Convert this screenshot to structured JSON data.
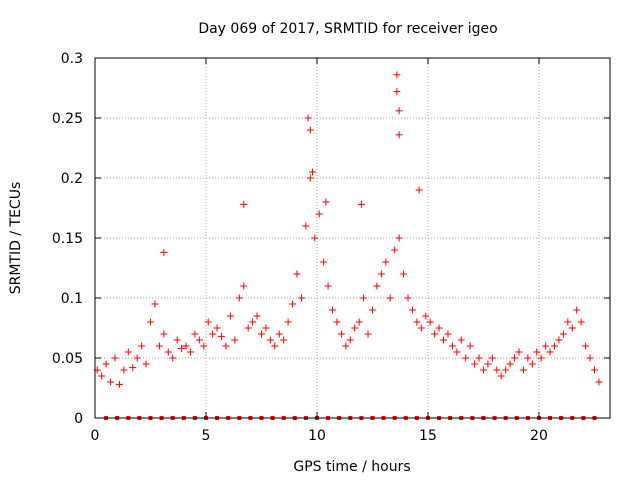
{
  "chart_data": {
    "type": "scatter",
    "title": "Day 069 of 2017, SRMTID for receiver igeo",
    "xlabel": "GPS time / hours",
    "ylabel": "SRMTID / TECUs",
    "xlim": [
      0,
      23.2
    ],
    "ylim": [
      0,
      0.3
    ],
    "x_ticks": [
      0,
      5,
      10,
      15,
      20
    ],
    "y_ticks": [
      0,
      0.05,
      0.1,
      0.15,
      0.2,
      0.25,
      0.3
    ],
    "x_tick_labels": [
      "0",
      "5",
      "10",
      "15",
      "20"
    ],
    "y_tick_labels": [
      "0",
      "0.05",
      "0.1",
      "0.15",
      "0.2",
      "0.25",
      "0.3"
    ],
    "grid": true,
    "marker": "plus",
    "series": [
      {
        "name": "SRMTID",
        "color": "#ff0000",
        "x": [
          0.1,
          0.3,
          0.5,
          0.7,
          0.9,
          1.1,
          1.3,
          1.5,
          1.7,
          1.9,
          2.1,
          2.3,
          2.5,
          2.7,
          2.9,
          3.1,
          3.3,
          3.5,
          3.7,
          3.9,
          4.1,
          4.3,
          4.5,
          4.7,
          4.9,
          5.1,
          5.3,
          5.5,
          5.7,
          5.9,
          6.1,
          6.3,
          6.5,
          6.7,
          6.9,
          7.1,
          7.3,
          7.5,
          7.7,
          7.9,
          8.1,
          8.3,
          8.5,
          8.7,
          8.9,
          9.1,
          9.3,
          9.5,
          9.7,
          9.9,
          10.1,
          10.3,
          10.5,
          10.7,
          10.9,
          11.1,
          11.3,
          11.5,
          11.7,
          11.9,
          12.1,
          12.3,
          12.5,
          12.7,
          12.9,
          13.1,
          13.3,
          13.5,
          13.7,
          13.9,
          14.1,
          14.3,
          14.5,
          14.7,
          14.9,
          15.1,
          15.3,
          15.5,
          15.7,
          15.9,
          16.1,
          16.3,
          16.5,
          16.7,
          16.9,
          17.1,
          17.3,
          17.5,
          17.7,
          17.9,
          18.1,
          18.3,
          18.5,
          18.7,
          18.9,
          19.1,
          19.3,
          19.5,
          19.7,
          19.9,
          20.1,
          20.3,
          20.5,
          20.7,
          20.9,
          21.1,
          21.3,
          21.5,
          21.7,
          21.9,
          22.1,
          22.3,
          22.5,
          22.7,
          9.6,
          9.7,
          13.6,
          13.6,
          13.7,
          13.7,
          9.8,
          10.4,
          12.0,
          14.6,
          6.7,
          3.1
        ],
        "y": [
          0.04,
          0.035,
          0.045,
          0.03,
          0.05,
          0.028,
          0.04,
          0.055,
          0.042,
          0.05,
          0.06,
          0.045,
          0.08,
          0.095,
          0.06,
          0.07,
          0.055,
          0.05,
          0.065,
          0.058,
          0.06,
          0.055,
          0.07,
          0.065,
          0.06,
          0.08,
          0.07,
          0.075,
          0.068,
          0.06,
          0.085,
          0.065,
          0.1,
          0.11,
          0.075,
          0.08,
          0.085,
          0.07,
          0.075,
          0.065,
          0.06,
          0.07,
          0.065,
          0.08,
          0.095,
          0.12,
          0.1,
          0.16,
          0.2,
          0.15,
          0.17,
          0.13,
          0.11,
          0.09,
          0.08,
          0.07,
          0.06,
          0.065,
          0.075,
          0.08,
          0.1,
          0.07,
          0.09,
          0.11,
          0.12,
          0.13,
          0.1,
          0.14,
          0.15,
          0.12,
          0.1,
          0.09,
          0.08,
          0.075,
          0.085,
          0.08,
          0.07,
          0.075,
          0.065,
          0.07,
          0.06,
          0.055,
          0.065,
          0.05,
          0.06,
          0.045,
          0.05,
          0.04,
          0.045,
          0.05,
          0.04,
          0.035,
          0.04,
          0.045,
          0.05,
          0.055,
          0.04,
          0.05,
          0.045,
          0.055,
          0.05,
          0.06,
          0.055,
          0.06,
          0.065,
          0.07,
          0.08,
          0.075,
          0.09,
          0.08,
          0.06,
          0.05,
          0.04,
          0.03,
          0.25,
          0.24,
          0.286,
          0.272,
          0.256,
          0.236,
          0.205,
          0.18,
          0.178,
          0.19,
          0.178,
          0.138
        ]
      }
    ],
    "data_gap_markers_y": 0,
    "data_gap_markers_x": [
      0.5,
      1.0,
      1.5,
      2.0,
      2.5,
      3.0,
      3.5,
      4.0,
      4.5,
      5.0,
      5.5,
      6.0,
      6.5,
      7.0,
      7.5,
      8.0,
      8.5,
      9.0,
      9.5,
      10.0,
      10.5,
      11.0,
      11.5,
      12.0,
      12.5,
      13.0,
      13.5,
      14.0,
      14.5,
      15.0,
      15.5,
      16.0,
      16.5,
      17.0,
      17.5,
      18.0,
      18.5,
      19.0,
      19.5,
      20.0,
      20.5,
      21.0,
      21.5,
      22.0,
      22.5
    ]
  }
}
